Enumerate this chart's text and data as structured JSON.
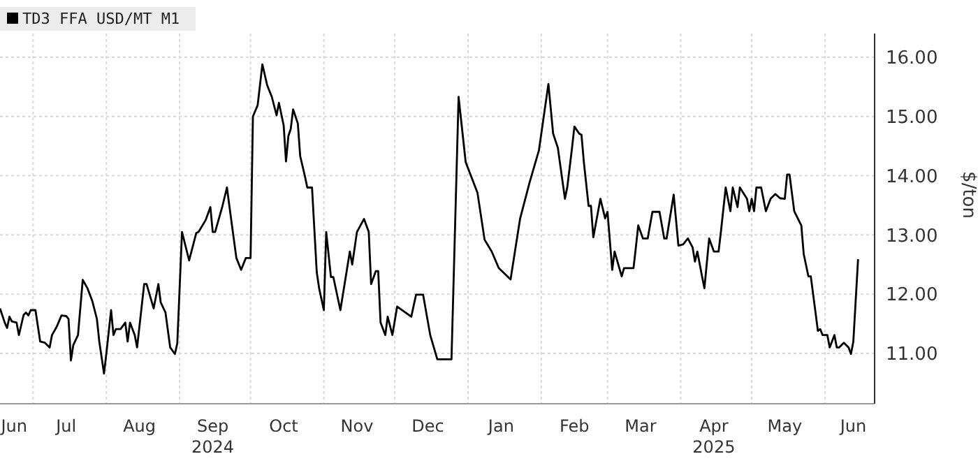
{
  "chart_data": {
    "type": "line",
    "ylabel": "$/ton",
    "legend": "top left",
    "grid": true,
    "marker": "none",
    "line_style": "solid",
    "xlim": [
      "2024-06-17",
      "2025-06-22"
    ],
    "xticks": [
      {
        "value": "2024-06-23",
        "label": "Jun"
      },
      {
        "value": "2024-07-01",
        "label": null
      },
      {
        "value": "2024-07-15",
        "label": "Jul"
      },
      {
        "value": "2024-08-01",
        "label": null
      },
      {
        "value": "2024-08-15",
        "label": "Aug"
      },
      {
        "value": "2024-09-01",
        "label": null
      },
      {
        "value": "2024-09-15",
        "label": "Sep\n2024"
      },
      {
        "value": "2024-10-01",
        "label": null
      },
      {
        "value": "2024-10-15",
        "label": "Oct"
      },
      {
        "value": "2024-11-01",
        "label": null
      },
      {
        "value": "2024-11-15",
        "label": "Nov"
      },
      {
        "value": "2024-12-01",
        "label": null
      },
      {
        "value": "2024-12-15",
        "label": "Dec"
      },
      {
        "value": "2025-01-01",
        "label": null
      },
      {
        "value": "2025-01-15",
        "label": "Jan"
      },
      {
        "value": "2025-02-01",
        "label": null
      },
      {
        "value": "2025-02-15",
        "label": "Feb"
      },
      {
        "value": "2025-03-01",
        "label": null
      },
      {
        "value": "2025-03-15",
        "label": "Mar"
      },
      {
        "value": "2025-04-01",
        "label": null
      },
      {
        "value": "2025-04-15",
        "label": "Apr\n2025"
      },
      {
        "value": "2025-05-01",
        "label": null
      },
      {
        "value": "2025-05-15",
        "label": "May"
      },
      {
        "value": "2025-06-01",
        "label": null
      },
      {
        "value": "2025-06-13",
        "label": "Jun"
      }
    ],
    "ylim": [
      10.15,
      16.4
    ],
    "yticks": [
      {
        "value": 11,
        "label": "11.00"
      },
      {
        "value": 12,
        "label": "12.00"
      },
      {
        "value": 13,
        "label": "13.00"
      },
      {
        "value": 14,
        "label": "14.00"
      },
      {
        "value": 15,
        "label": "15.00"
      },
      {
        "value": 16,
        "label": "16.00"
      }
    ],
    "x": [
      "2024-06-17",
      "2024-06-19",
      "2024-06-20",
      "2024-06-21",
      "2024-06-22",
      "2024-06-24",
      "2024-06-25",
      "2024-06-27",
      "2024-06-28",
      "2024-06-29",
      "2024-06-30",
      "2024-07-02",
      "2024-07-04",
      "2024-07-06",
      "2024-07-08",
      "2024-07-09",
      "2024-07-11",
      "2024-07-13",
      "2024-07-15",
      "2024-07-16",
      "2024-07-17",
      "2024-07-18",
      "2024-07-20",
      "2024-07-22",
      "2024-07-24",
      "2024-07-26",
      "2024-07-28",
      "2024-07-29",
      "2024-07-31",
      "2024-08-01",
      "2024-08-03",
      "2024-08-04",
      "2024-08-05",
      "2024-08-07",
      "2024-08-09",
      "2024-08-10",
      "2024-08-11",
      "2024-08-13",
      "2024-08-14",
      "2024-08-17",
      "2024-08-18",
      "2024-08-21",
      "2024-08-23",
      "2024-08-24",
      "2024-08-26",
      "2024-08-28",
      "2024-08-30",
      "2024-08-31",
      "2024-09-02",
      "2024-09-05",
      "2024-09-08",
      "2024-09-09",
      "2024-09-12",
      "2024-09-14",
      "2024-09-15",
      "2024-09-16",
      "2024-09-19",
      "2024-09-21",
      "2024-09-23",
      "2024-09-25",
      "2024-09-27",
      "2024-09-29",
      "2024-10-01",
      "2024-10-02",
      "2024-10-04",
      "2024-10-06",
      "2024-10-08",
      "2024-10-10",
      "2024-10-12",
      "2024-10-13",
      "2024-10-15",
      "2024-10-16",
      "2024-10-17",
      "2024-10-18",
      "2024-10-19",
      "2024-10-21",
      "2024-10-22",
      "2024-10-24",
      "2024-10-25",
      "2024-10-27",
      "2024-10-29",
      "2024-10-30",
      "2024-11-01",
      "2024-11-02",
      "2024-11-04",
      "2024-11-05",
      "2024-11-08",
      "2024-11-12",
      "2024-11-13",
      "2024-11-15",
      "2024-11-18",
      "2024-11-20",
      "2024-11-21",
      "2024-11-23",
      "2024-11-24",
      "2024-11-25",
      "2024-11-27",
      "2024-11-28",
      "2024-11-30",
      "2024-12-02",
      "2024-12-08",
      "2024-12-10",
      "2024-12-13",
      "2024-12-16",
      "2024-12-19",
      "2024-12-25",
      "2024-12-28",
      "2024-12-31",
      "2025-01-05",
      "2025-01-08",
      "2025-01-11",
      "2025-01-14",
      "2025-01-19",
      "2025-01-23",
      "2025-01-27",
      "2025-01-31",
      "2025-02-04",
      "2025-02-06",
      "2025-02-08",
      "2025-02-11",
      "2025-02-12",
      "2025-02-14",
      "2025-02-15",
      "2025-02-17",
      "2025-02-18",
      "2025-02-19",
      "2025-02-21",
      "2025-02-22",
      "2025-02-23",
      "2025-02-26",
      "2025-02-28",
      "2025-03-01",
      "2025-03-03",
      "2025-03-04",
      "2025-03-07",
      "2025-03-08",
      "2025-03-10",
      "2025-03-12",
      "2025-03-13",
      "2025-03-14",
      "2025-03-16",
      "2025-03-18",
      "2025-03-20",
      "2025-03-23",
      "2025-03-25",
      "2025-03-26",
      "2025-03-29",
      "2025-03-31",
      "2025-04-02",
      "2025-04-04",
      "2025-04-06",
      "2025-04-07",
      "2025-04-08",
      "2025-04-10",
      "2025-04-11",
      "2025-04-13",
      "2025-04-15",
      "2025-04-17",
      "2025-04-18",
      "2025-04-20",
      "2025-04-22",
      "2025-04-23",
      "2025-04-25",
      "2025-04-26",
      "2025-04-29",
      "2025-04-30",
      "2025-05-01",
      "2025-05-02",
      "2025-05-03",
      "2025-05-05",
      "2025-05-07",
      "2025-05-09",
      "2025-05-11",
      "2025-05-13",
      "2025-05-15",
      "2025-05-16",
      "2025-05-17",
      "2025-05-19",
      "2025-05-22",
      "2025-05-23",
      "2025-05-25",
      "2025-05-26",
      "2025-05-28",
      "2025-05-29",
      "2025-05-30",
      "2025-05-31",
      "2025-06-02",
      "2025-06-03",
      "2025-06-05",
      "2025-06-06",
      "2025-06-07",
      "2025-06-09",
      "2025-06-11",
      "2025-06-12",
      "2025-06-13",
      "2025-06-15"
    ],
    "series": [
      {
        "name": "TD3 FFA USD/MT M1",
        "color": "#000000",
        "values": [
          11.76,
          11.52,
          11.43,
          11.62,
          11.54,
          11.52,
          11.31,
          11.65,
          11.69,
          11.64,
          11.73,
          11.73,
          11.2,
          11.18,
          11.1,
          11.31,
          11.45,
          11.64,
          11.63,
          11.58,
          10.88,
          11.14,
          11.31,
          12.24,
          12.1,
          11.89,
          11.58,
          11.2,
          10.66,
          11.0,
          11.73,
          11.31,
          11.41,
          11.41,
          11.52,
          11.2,
          11.52,
          11.31,
          11.1,
          12.17,
          12.17,
          11.76,
          12.17,
          11.86,
          11.69,
          11.1,
          10.99,
          11.17,
          13.05,
          12.57,
          13.03,
          13.05,
          13.25,
          13.47,
          13.05,
          13.05,
          13.47,
          13.8,
          13.2,
          12.61,
          12.41,
          12.61,
          12.61,
          15.0,
          15.19,
          15.88,
          15.53,
          15.33,
          15.02,
          15.23,
          14.85,
          14.24,
          14.67,
          14.79,
          15.12,
          14.88,
          14.33,
          13.99,
          13.8,
          13.8,
          12.37,
          12.1,
          11.73,
          13.05,
          12.29,
          12.29,
          11.73,
          12.72,
          12.5,
          13.05,
          13.27,
          13.05,
          12.17,
          12.39,
          12.39,
          11.52,
          11.31,
          11.62,
          11.31,
          11.79,
          11.62,
          11.99,
          11.99,
          11.31,
          10.9,
          10.9,
          15.33,
          14.23,
          13.71,
          12.92,
          12.72,
          12.44,
          12.25,
          13.27,
          13.88,
          14.43,
          15.55,
          14.71,
          14.47,
          13.61,
          13.81,
          14.47,
          14.83,
          14.71,
          14.69,
          14.23,
          13.49,
          13.49,
          12.96,
          13.61,
          13.28,
          13.39,
          12.41,
          12.72,
          12.3,
          12.44,
          12.44,
          12.44,
          12.79,
          13.16,
          12.94,
          12.94,
          13.39,
          13.39,
          12.94,
          12.94,
          13.68,
          12.82,
          12.84,
          12.94,
          12.79,
          12.55,
          12.72,
          12.3,
          12.1,
          12.94,
          12.72,
          12.72,
          13.06,
          13.8,
          13.4,
          13.8,
          13.47,
          13.8,
          13.61,
          13.4,
          13.61,
          13.4,
          13.8,
          13.8,
          13.4,
          13.61,
          13.69,
          13.62,
          13.61,
          14.02,
          14.02,
          13.4,
          13.16,
          12.68,
          12.3,
          12.3,
          11.69,
          11.38,
          11.41,
          11.31,
          11.31,
          11.1,
          11.31,
          11.1,
          11.1,
          11.18,
          11.1,
          10.99,
          11.2,
          12.59
        ]
      }
    ]
  }
}
